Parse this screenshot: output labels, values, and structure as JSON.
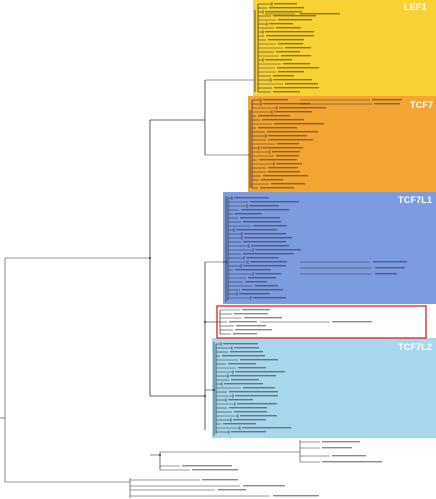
{
  "figure": {
    "clades": [
      {
        "name": "LEF1",
        "color": "#f8d234"
      },
      {
        "name": "TCF7",
        "color": "#f3a533"
      },
      {
        "name": "TCF7L1",
        "color": "#7c9be0"
      },
      {
        "name": "TCF7L2",
        "color": "#a6d7ec"
      }
    ],
    "highlight": {
      "stroke": "#e0201f"
    },
    "branch_color": "#333333",
    "leaf_text_color": "#2a2a2a"
  }
}
